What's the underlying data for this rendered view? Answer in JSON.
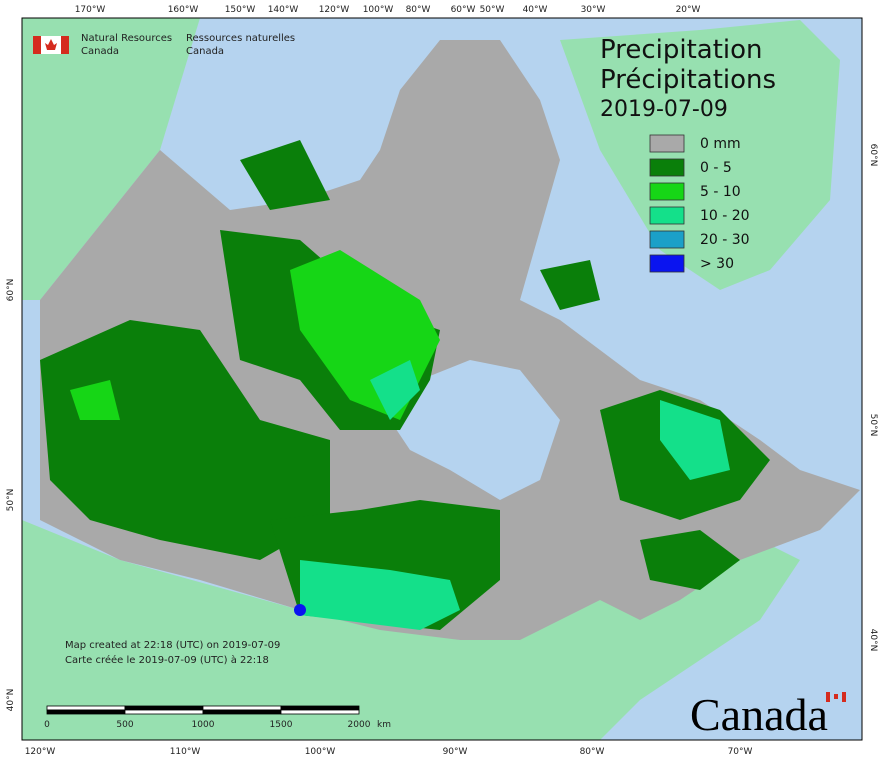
{
  "header": {
    "agency_en": [
      "Natural Resources",
      "Canada"
    ],
    "agency_fr": [
      "Ressources naturelles",
      "Canada"
    ]
  },
  "title": {
    "en": "Precipitation",
    "fr": "Précipitations",
    "date": "2019-07-09"
  },
  "legend": [
    {
      "label": "0 mm",
      "color": "#a9a9a9"
    },
    {
      "label": "0 - 5",
      "color": "#0a7f0a"
    },
    {
      "label": "5 - 10",
      "color": "#16d616"
    },
    {
      "label": "10 - 20",
      "color": "#14e08a"
    },
    {
      "label": "20 - 30",
      "color": "#1ba0c8"
    },
    {
      "label": "> 30",
      "color": "#0a14f0"
    }
  ],
  "top_labels": [
    "170°W",
    "160°W",
    "150°W",
    "140°W",
    "120°W",
    "100°W",
    "80°W",
    "60°W",
    "50°W",
    "40°W",
    "30°W",
    "20°W"
  ],
  "bottom_labels": [
    "120°W",
    "110°W",
    "100°W",
    "90°W",
    "80°W",
    "70°W"
  ],
  "left_labels": [
    "60°N",
    "50°N",
    "40°N"
  ],
  "right_labels": [
    "60°N",
    "50°N",
    "40°N"
  ],
  "scale_bar": {
    "ticks": [
      "0",
      "500",
      "1000",
      "1500",
      "2000"
    ],
    "unit": "km"
  },
  "credits": [
    "Map created at 22:18 (UTC) on 2019-07-09",
    "Carte créée le 2019-07-09 (UTC) à 22:18"
  ],
  "wordmark": "Canada"
}
